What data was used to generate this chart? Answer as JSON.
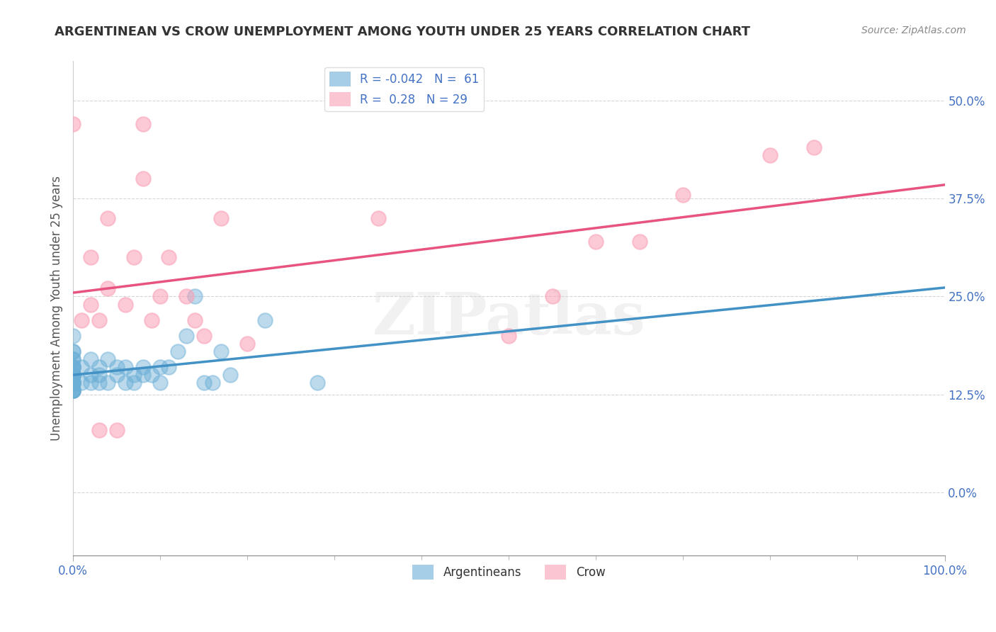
{
  "title": "ARGENTINEAN VS CROW UNEMPLOYMENT AMONG YOUTH UNDER 25 YEARS CORRELATION CHART",
  "source": "Source: ZipAtlas.com",
  "ylabel": "Unemployment Among Youth under 25 years",
  "xlim": [
    0.0,
    1.0
  ],
  "ylim": [
    -0.08,
    0.55
  ],
  "xtick_positions": [
    0.0,
    1.0
  ],
  "xtick_labels": [
    "0.0%",
    "100.0%"
  ],
  "ytick_positions": [
    0.0,
    0.125,
    0.25,
    0.375,
    0.5
  ],
  "ytick_labels": [
    "0.0%",
    "12.5%",
    "25.0%",
    "37.5%",
    "50.0%"
  ],
  "argentinean_color": "#6baed6",
  "crow_color": "#fa9fb5",
  "argentinean_line_color": "#4292c6",
  "crow_line_color": "#e75480",
  "argentinean_R": -0.042,
  "argentinean_N": 61,
  "crow_R": 0.28,
  "crow_N": 29,
  "watermark": "ZIPatlas",
  "argentinean_x": [
    0.0,
    0.0,
    0.0,
    0.0,
    0.0,
    0.0,
    0.0,
    0.0,
    0.0,
    0.0,
    0.0,
    0.0,
    0.0,
    0.0,
    0.0,
    0.0,
    0.0,
    0.0,
    0.0,
    0.0,
    0.0,
    0.0,
    0.0,
    0.0,
    0.0,
    0.0,
    0.0,
    0.0,
    0.0,
    0.0,
    0.01,
    0.01,
    0.02,
    0.02,
    0.02,
    0.03,
    0.03,
    0.03,
    0.04,
    0.04,
    0.05,
    0.05,
    0.06,
    0.06,
    0.07,
    0.07,
    0.08,
    0.08,
    0.09,
    0.1,
    0.1,
    0.11,
    0.12,
    0.13,
    0.14,
    0.15,
    0.16,
    0.17,
    0.18,
    0.22,
    0.28
  ],
  "argentinean_y": [
    0.13,
    0.13,
    0.13,
    0.13,
    0.13,
    0.14,
    0.14,
    0.14,
    0.14,
    0.14,
    0.14,
    0.14,
    0.14,
    0.15,
    0.15,
    0.15,
    0.15,
    0.15,
    0.15,
    0.15,
    0.15,
    0.16,
    0.16,
    0.16,
    0.16,
    0.17,
    0.17,
    0.18,
    0.18,
    0.2,
    0.14,
    0.16,
    0.14,
    0.15,
    0.17,
    0.14,
    0.15,
    0.16,
    0.14,
    0.17,
    0.15,
    0.16,
    0.14,
    0.16,
    0.14,
    0.15,
    0.15,
    0.16,
    0.15,
    0.14,
    0.16,
    0.16,
    0.18,
    0.2,
    0.25,
    0.14,
    0.14,
    0.18,
    0.15,
    0.22,
    0.14
  ],
  "crow_x": [
    0.0,
    0.01,
    0.02,
    0.02,
    0.03,
    0.03,
    0.04,
    0.04,
    0.05,
    0.06,
    0.07,
    0.08,
    0.08,
    0.09,
    0.1,
    0.11,
    0.13,
    0.14,
    0.15,
    0.17,
    0.2,
    0.35,
    0.5,
    0.55,
    0.6,
    0.65,
    0.7,
    0.8,
    0.85
  ],
  "crow_y": [
    0.47,
    0.22,
    0.24,
    0.3,
    0.08,
    0.22,
    0.35,
    0.26,
    0.08,
    0.24,
    0.3,
    0.4,
    0.47,
    0.22,
    0.25,
    0.3,
    0.25,
    0.22,
    0.2,
    0.35,
    0.19,
    0.35,
    0.2,
    0.25,
    0.32,
    0.32,
    0.38,
    0.43,
    0.44
  ]
}
